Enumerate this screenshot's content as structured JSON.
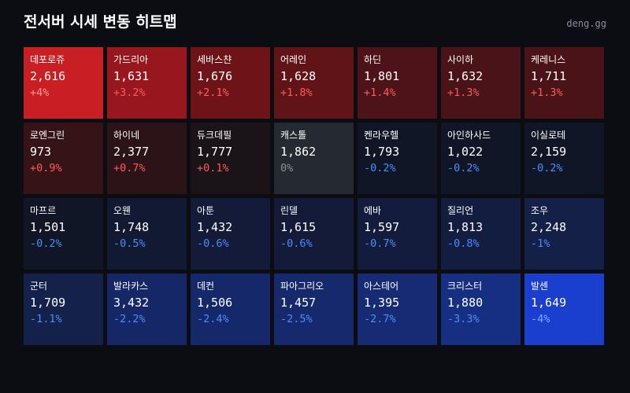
{
  "header": {
    "title": "전서버 시세 변동 히트맵",
    "site": "deng.gg"
  },
  "colors": {
    "up_text": "#ff5a5a",
    "down_text": "#4a8dff",
    "flat_text": "#8c8f96",
    "background": "#0b0d12"
  },
  "cells": [
    {
      "name": "데포로쥬",
      "price": "2,616",
      "change": "+4%",
      "bg": "#c81e24",
      "tone": "up_strong"
    },
    {
      "name": "가드리아",
      "price": "1,631",
      "change": "+3.2%",
      "bg": "#98161d",
      "tone": "up"
    },
    {
      "name": "세바스챤",
      "price": "1,676",
      "change": "+2.1%",
      "bg": "#6e1419",
      "tone": "up"
    },
    {
      "name": "어레인",
      "price": "1,628",
      "change": "+1.8%",
      "bg": "#611418",
      "tone": "up"
    },
    {
      "name": "하딘",
      "price": "1,801",
      "change": "+1.4%",
      "bg": "#4e1318",
      "tone": "up"
    },
    {
      "name": "사이하",
      "price": "1,632",
      "change": "+1.3%",
      "bg": "#491318",
      "tone": "up"
    },
    {
      "name": "케레니스",
      "price": "1,711",
      "change": "+1.3%",
      "bg": "#491318",
      "tone": "up"
    },
    {
      "name": "로엔그린",
      "price": "973",
      "change": "+0.9%",
      "bg": "#351317",
      "tone": "up"
    },
    {
      "name": "하이네",
      "price": "2,377",
      "change": "+0.7%",
      "bg": "#2b1317",
      "tone": "up"
    },
    {
      "name": "듀크데필",
      "price": "1,777",
      "change": "+0.1%",
      "bg": "#1a1317",
      "tone": "up"
    },
    {
      "name": "캐스톨",
      "price": "1,862",
      "change": "0%",
      "bg": "#252a32",
      "tone": "flat"
    },
    {
      "name": "켄라우헬",
      "price": "1,793",
      "change": "-0.2%",
      "bg": "#111627",
      "tone": "down"
    },
    {
      "name": "아인하사드",
      "price": "1,022",
      "change": "-0.2%",
      "bg": "#111627",
      "tone": "down"
    },
    {
      "name": "이실로테",
      "price": "2,159",
      "change": "-0.2%",
      "bg": "#111627",
      "tone": "down"
    },
    {
      "name": "마프르",
      "price": "1,501",
      "change": "-0.2%",
      "bg": "#111627",
      "tone": "down"
    },
    {
      "name": "오웬",
      "price": "1,748",
      "change": "-0.5%",
      "bg": "#121a33",
      "tone": "down"
    },
    {
      "name": "아툰",
      "price": "1,432",
      "change": "-0.6%",
      "bg": "#131b38",
      "tone": "down"
    },
    {
      "name": "린델",
      "price": "1,615",
      "change": "-0.6%",
      "bg": "#131b38",
      "tone": "down"
    },
    {
      "name": "에바",
      "price": "1,597",
      "change": "-0.7%",
      "bg": "#131c3c",
      "tone": "down"
    },
    {
      "name": "질리언",
      "price": "1,813",
      "change": "-0.8%",
      "bg": "#131d40",
      "tone": "down"
    },
    {
      "name": "조우",
      "price": "2,248",
      "change": "-1%",
      "bg": "#142048",
      "tone": "down"
    },
    {
      "name": "군터",
      "price": "1,709",
      "change": "-1.1%",
      "bg": "#14214b",
      "tone": "down"
    },
    {
      "name": "발라카스",
      "price": "3,432",
      "change": "-2.2%",
      "bg": "#152766",
      "tone": "down"
    },
    {
      "name": "데컨",
      "price": "1,506",
      "change": "-2.4%",
      "bg": "#152869",
      "tone": "down"
    },
    {
      "name": "파아그리오",
      "price": "1,457",
      "change": "-2.5%",
      "bg": "#15296c",
      "tone": "down"
    },
    {
      "name": "아스테어",
      "price": "1,395",
      "change": "-2.7%",
      "bg": "#162b73",
      "tone": "down"
    },
    {
      "name": "크리스터",
      "price": "1,880",
      "change": "-3.3%",
      "bg": "#172f82",
      "tone": "down"
    },
    {
      "name": "발센",
      "price": "1,649",
      "change": "-4%",
      "bg": "#1a3fcf",
      "tone": "down_strong"
    }
  ]
}
